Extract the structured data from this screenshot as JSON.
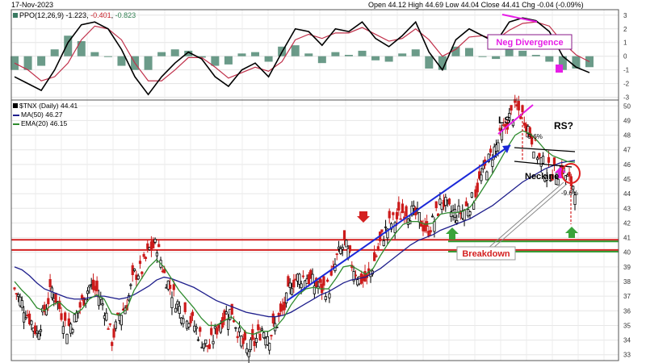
{
  "header": {
    "date": "17-Nov-2023",
    "ohlc": "Open 44.12   High 44.69   Low 44.04   Close 44.41   Chg -0.04 (-0.09%)"
  },
  "ppo_panel": {
    "legend_title": "PPO(12,26,9)",
    "legend_values": [
      "-1.223",
      "-0.401",
      "-0.823"
    ],
    "value_colors": [
      "#000000",
      "#c8202a",
      "#2e7d4f"
    ]
  },
  "price_panel": {
    "legend": [
      {
        "text": "$TNX (Daily) 44.41",
        "color": "#000000"
      },
      {
        "text": "MA(50) 46.27",
        "color": "#1e1e8c"
      },
      {
        "text": "EMA(20) 46.15",
        "color": "#2e8b2e"
      }
    ]
  },
  "annotations": {
    "neg_divergence": "Neg Divergence",
    "ls": "LS",
    "rs": "RS?",
    "neckline": "Neckine",
    "pct_left": "-9.6%",
    "pct_right": "-9.6%",
    "breakdown": "Breakdown"
  },
  "colors": {
    "up_candle": "#000000",
    "down_candle": "#cc1b1b",
    "ma50": "#1e1e8c",
    "ema20": "#2e8b2e",
    "resistance": "#d42020",
    "support": "#2e9a2e",
    "annotation_red": "#d42020",
    "annotation_magenta": "#e61ee6",
    "trendline_blue": "#1a28d8",
    "ppo_line": "#000000",
    "signal_line": "#c0304a",
    "histogram": "#3a7a62"
  },
  "chart_data": [
    {
      "type": "line",
      "name": "PPO panel",
      "y_ticks": [
        3,
        2,
        1,
        0,
        -1,
        -2,
        -3
      ],
      "ylim": [
        -3.2,
        3.4
      ],
      "grid": true,
      "ppo": [
        -1.5,
        -2.0,
        -2.5,
        -1.0,
        1.0,
        2.3,
        2.5,
        2.0,
        0.5,
        -1.5,
        -2.8,
        -1.5,
        -0.5,
        0.3,
        -0.2,
        -1.5,
        -2.2,
        -1.0,
        -0.5,
        -1.5,
        0.3,
        2.0,
        1.8,
        0.8,
        2.0,
        1.8,
        2.5,
        1.3,
        0.7,
        1.5,
        2.5,
        0.3,
        -1.0,
        1.2,
        2.0,
        1.5,
        1.0,
        2.5,
        2.8,
        2.6,
        1.8,
        0.0,
        -0.8,
        -1.2
      ],
      "signal": [
        -0.5,
        -1.0,
        -1.8,
        -1.5,
        -0.5,
        1.2,
        2.2,
        2.0,
        1.2,
        -0.5,
        -1.8,
        -1.8,
        -1.0,
        -0.1,
        -0.1,
        -0.8,
        -1.6,
        -1.2,
        -0.8,
        -1.1,
        -0.4,
        1.2,
        1.6,
        1.3,
        1.7,
        1.7,
        2.1,
        1.6,
        1.1,
        1.3,
        2.0,
        1.2,
        0.0,
        0.5,
        1.4,
        1.5,
        1.2,
        1.9,
        2.4,
        2.5,
        2.2,
        1.0,
        0.1,
        -0.4
      ]
    },
    {
      "type": "candlestick",
      "name": "$TNX (Daily)",
      "y_ticks": [
        50,
        49,
        48,
        47,
        46,
        45,
        44,
        43,
        42,
        41,
        40,
        39,
        38,
        37,
        36,
        35,
        34,
        33
      ],
      "ylim": [
        32.6,
        50.4
      ],
      "grid": true,
      "resistance_levels": [
        40.8,
        40.1
      ],
      "support_levels": [
        40.8,
        40.1
      ],
      "close": [
        37.5,
        36.5,
        35.5,
        34.5,
        36.0,
        37.5,
        36.2,
        34.8,
        35.4,
        36.6,
        37.7,
        37.3,
        36.2,
        34.0,
        35.7,
        36.5,
        38.5,
        38.8,
        40.2,
        40.5,
        38.5,
        37.3,
        36.2,
        35.8,
        35.0,
        34.0,
        33.5,
        34.8,
        35.7,
        36.0,
        34.3,
        33.2,
        33.8,
        34.8,
        34.3,
        35.2,
        36.2,
        38.0,
        38.3,
        38.3,
        37.8,
        37.5,
        37.6,
        39.6,
        40.6,
        39.2,
        38.2,
        38.0,
        39.4,
        41.0,
        41.9,
        42.3,
        42.9,
        42.7,
        42.3,
        41.4,
        42.2,
        43.6,
        42.8,
        42.6,
        42.9,
        43.5,
        44.8,
        46.0,
        47.0,
        48.0,
        49.2,
        49.8,
        49.2,
        47.8,
        46.4,
        45.6,
        45.4,
        45.7,
        44.8,
        44.4
      ],
      "ma50": [
        39.0,
        38.8,
        38.4,
        37.9,
        37.5,
        37.3,
        37.1,
        36.9,
        36.8,
        36.8,
        36.9,
        37.0,
        37.0,
        36.9,
        36.8,
        36.9,
        37.1,
        37.4,
        37.7,
        38.1,
        38.3,
        38.2,
        38.0,
        37.8,
        37.6,
        37.3,
        37.0,
        36.7,
        36.5,
        36.3,
        36.1,
        35.9,
        35.8,
        35.7,
        35.6,
        35.6,
        35.7,
        35.9,
        36.2,
        36.5,
        36.8,
        37.1,
        37.3,
        37.6,
        37.9,
        38.1,
        38.2,
        38.3,
        38.6,
        38.9,
        39.3,
        39.7,
        40.1,
        40.5,
        40.8,
        41.0,
        41.2,
        41.5,
        41.7,
        41.9,
        42.1,
        42.3,
        42.6,
        42.9,
        43.2,
        43.6,
        44.0,
        44.4,
        44.8,
        45.1,
        45.4,
        45.7,
        45.9,
        46.1,
        46.2,
        46.27
      ],
      "ema20": [
        38.0,
        37.4,
        36.9,
        36.2,
        36.0,
        36.4,
        36.6,
        36.1,
        35.8,
        36.1,
        36.8,
        37.1,
        36.8,
        35.8,
        35.7,
        36.1,
        37.4,
        38.2,
        39.0,
        39.5,
        39.0,
        38.2,
        37.4,
        36.8,
        36.2,
        35.5,
        35.0,
        35.0,
        35.3,
        35.6,
        35.1,
        34.5,
        34.4,
        34.6,
        34.6,
        34.9,
        35.5,
        36.4,
        37.1,
        37.5,
        37.6,
        37.5,
        37.5,
        38.2,
        39.0,
        39.1,
        38.8,
        38.5,
        38.9,
        39.8,
        40.6,
        41.3,
        41.9,
        42.1,
        42.1,
        41.9,
        42.0,
        42.6,
        42.7,
        42.7,
        42.8,
        43.1,
        43.8,
        44.6,
        45.4,
        46.3,
        47.2,
        48.0,
        48.3,
        48.1,
        47.6,
        47.0,
        46.6,
        46.4,
        46.2,
        46.15
      ]
    }
  ]
}
